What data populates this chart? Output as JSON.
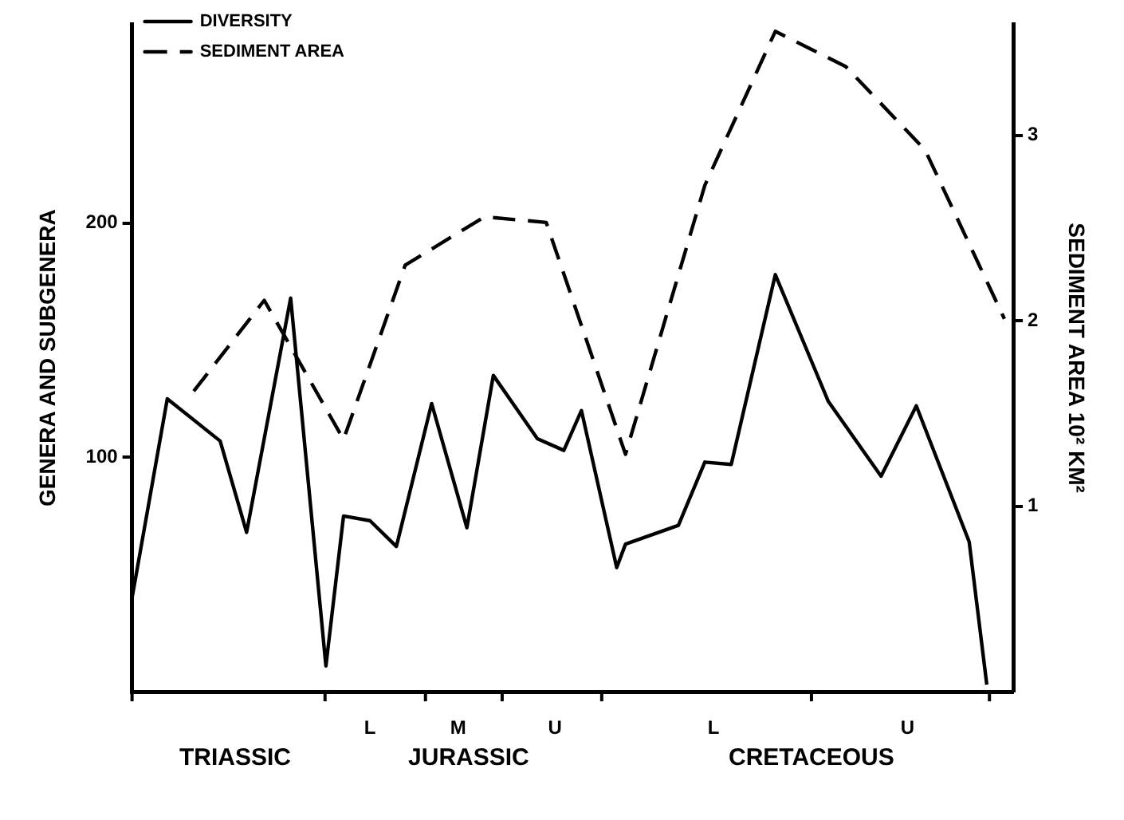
{
  "chart_data": {
    "type": "line",
    "ylabel": "GENERA AND SUBGENERA",
    "y2label": "SEDIMENT AREA 10² KM²",
    "categories": [
      null,
      null,
      null,
      null,
      null,
      null,
      null,
      null,
      null,
      null,
      null,
      null,
      null,
      null,
      null,
      null,
      null,
      null,
      null,
      null,
      null,
      null,
      null,
      null,
      null,
      null,
      null,
      "L",
      null,
      null,
      null,
      null,
      null,
      null,
      null,
      null,
      null,
      "M",
      null,
      null,
      null,
      null,
      null,
      null,
      null,
      null,
      null,
      null,
      "U",
      null,
      null,
      null,
      null,
      null,
      null,
      null,
      null,
      null,
      null,
      null,
      null,
      null,
      null,
      null,
      null,
      null,
      "L",
      null,
      null,
      null,
      null,
      null,
      null,
      null,
      null,
      null,
      null,
      null,
      null,
      null,
      null,
      null,
      null,
      null,
      null,
      null,
      null,
      null,
      "U",
      null,
      null,
      null,
      null,
      null,
      null,
      null,
      null,
      null,
      null,
      null,
      null
    ],
    "ylim": [
      0,
      285
    ],
    "yticks": [
      100,
      200
    ],
    "y2lim": [
      0,
      3.6
    ],
    "y2ticks": [
      1,
      2,
      3
    ],
    "grid": false,
    "legend": "top left",
    "marker": "none",
    "annotations": [
      "TRIASSIC",
      "JURASSIC",
      "CRETACEOUS"
    ],
    "series": [
      {
        "name": "DIVERSITY",
        "color": "#000000",
        "line_style": "solid",
        "values": [
          40,
          null,
          null,
          null,
          125,
          null,
          null,
          null,
          null,
          null,
          107,
          null,
          null,
          68,
          null,
          null,
          null,
          null,
          168,
          null,
          null,
          null,
          11,
          null,
          75,
          null,
          null,
          73,
          null,
          null,
          62,
          null,
          null,
          null,
          123,
          null,
          null,
          null,
          70,
          null,
          null,
          135,
          null,
          null,
          null,
          null,
          108,
          null,
          null,
          103,
          null,
          120,
          null,
          null,
          null,
          53,
          63,
          null,
          null,
          null,
          null,
          null,
          71,
          null,
          null,
          98,
          null,
          null,
          97,
          null,
          null,
          null,
          null,
          178,
          null,
          null,
          null,
          null,
          null,
          124,
          null,
          null,
          null,
          null,
          null,
          92,
          null,
          null,
          null,
          122,
          null,
          null,
          null,
          null,
          null,
          64,
          null,
          3,
          null,
          null,
          null
        ]
      },
      {
        "name": "SEDIMENT AREA",
        "color": "#000000",
        "line_style": "dashed",
        "axis": "y2",
        "values": [
          null,
          null,
          null,
          null,
          null,
          null,
          null,
          1.62,
          null,
          null,
          null,
          null,
          null,
          null,
          null,
          2.11,
          null,
          null,
          null,
          null,
          null,
          null,
          null,
          null,
          1.36,
          null,
          null,
          null,
          null,
          null,
          null,
          2.3,
          null,
          null,
          null,
          null,
          null,
          null,
          null,
          null,
          2.56,
          null,
          null,
          null,
          null,
          null,
          null,
          2.53,
          null,
          null,
          null,
          null,
          null,
          null,
          null,
          null,
          1.28,
          null,
          null,
          null,
          null,
          null,
          null,
          null,
          null,
          2.73,
          null,
          null,
          null,
          null,
          null,
          null,
          null,
          3.56,
          null,
          null,
          null,
          null,
          null,
          null,
          null,
          3.37,
          null,
          null,
          null,
          null,
          null,
          null,
          null,
          null,
          2.92,
          null,
          null,
          null,
          null,
          null,
          null,
          null,
          null,
          2.01,
          null
        ]
      }
    ]
  }
}
